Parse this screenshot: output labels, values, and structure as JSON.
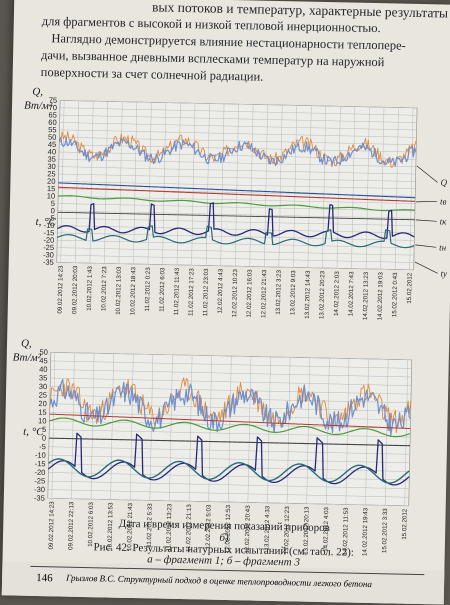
{
  "top_text": {
    "line1": "для фрагментов с высокой и низкой тепловой инерционностью.",
    "line2": "Наглядно демонстрируется влияние нестационарности теплопере-",
    "line3": "дачи, вызванное дневными всплесками температур на наружной",
    "line4": "поверхности за счет солнечной радиации.",
    "line0": "вых потоков и температур, характерные результаты"
  },
  "figure_a": {
    "label": "а)",
    "q_axis_label": "Q,",
    "q_axis_unit": "Вт/м²",
    "t_axis_label": "t, °C",
    "y_ticks": [
      "75",
      "70",
      "65",
      "60",
      "55",
      "50",
      "45",
      "40",
      "35",
      "30",
      "25",
      "20",
      "15",
      "10",
      "5",
      "0",
      "-5",
      "-10",
      "-15",
      "-20",
      "-25",
      "-30",
      "-35"
    ],
    "x_ticks": [
      "09.02.2012 14:23",
      "09.02.2012 20:03",
      "10.02.2012 1:43",
      "10.02.2012 7:23",
      "10.02.2012 13:03",
      "10.02.2012 18:43",
      "11.02.2012 0:23",
      "11.02.2012 6:03",
      "11.02.2012 11:43",
      "11.02.2012 17:23",
      "11.02.2012 23:03",
      "12.02.2012 4:43",
      "12.02.2012 10:23",
      "12.02.2012 16:03",
      "12.02.2012 21:43",
      "13.02.2012 3:23",
      "13.02.2012 9:03",
      "13.02.2012 14:43",
      "13.02.2012 20:23",
      "14.02.2012 2:03",
      "14.02.2012 7:43",
      "14.02.2012 13:23",
      "14.02.2012 19:03",
      "15.02.2012 0:43",
      "15.02.2012"
    ],
    "curve_labels": [
      "Q",
      "tв",
      "tк",
      "tн",
      "tу"
    ]
  },
  "figure_b": {
    "label": "б)",
    "q_axis_label": "Q,",
    "q_axis_unit": "Вт/м²",
    "t_axis_label": "t, °C",
    "y_ticks": [
      "50",
      "45",
      "40",
      "35",
      "30",
      "25",
      "20",
      "15",
      "10",
      "5",
      "0",
      "-5",
      "-10",
      "-15",
      "-20",
      "-25",
      "-30",
      "-35"
    ],
    "x_ticks": [
      "09.02.2012 14:23",
      "09.02.2012 22:13",
      "10.02.2012 6:03",
      "10.02.2012 13:53",
      "10.02.2012 21:43",
      "11.02.2012 5:33",
      "11.02.2012 13:23",
      "11.02.2012 21:13",
      "12.02.2012 5:03",
      "12.02.2012 12:53",
      "12.02.2012 20:43",
      "13.02.2012 4:33",
      "13.02.2012 12:23",
      "13.02.2012 20:13",
      "14.02.2012 4:03",
      "14.02.2012 11:53",
      "14.02.2012 19:43",
      "15.02.2012 3:33",
      "15.02.2012"
    ],
    "x_axis_title": "Дата и время измерения показаний приборов"
  },
  "caption": {
    "line1": "Рис. 42. Результаты натурных испытаний (см. табл. 22):",
    "line2": "а – фрагмент 1; б – фрагмент 3"
  },
  "footer": {
    "page_number": "146",
    "running_title": "Грызлов В.С. Структурный подход в оценке теплопроводности легкого бетона"
  },
  "colors": {
    "q_series": "#6f8fcf",
    "q_series_orange": "#e08a3c",
    "t_inner_red": "#b33a32",
    "t_inner_blue": "#2c4f9a",
    "t_green": "#4d9a3d",
    "t_outer_navy": "#262a7a",
    "t_outer_teal": "#2a6b7a",
    "grid": "#b9b9b9"
  }
}
